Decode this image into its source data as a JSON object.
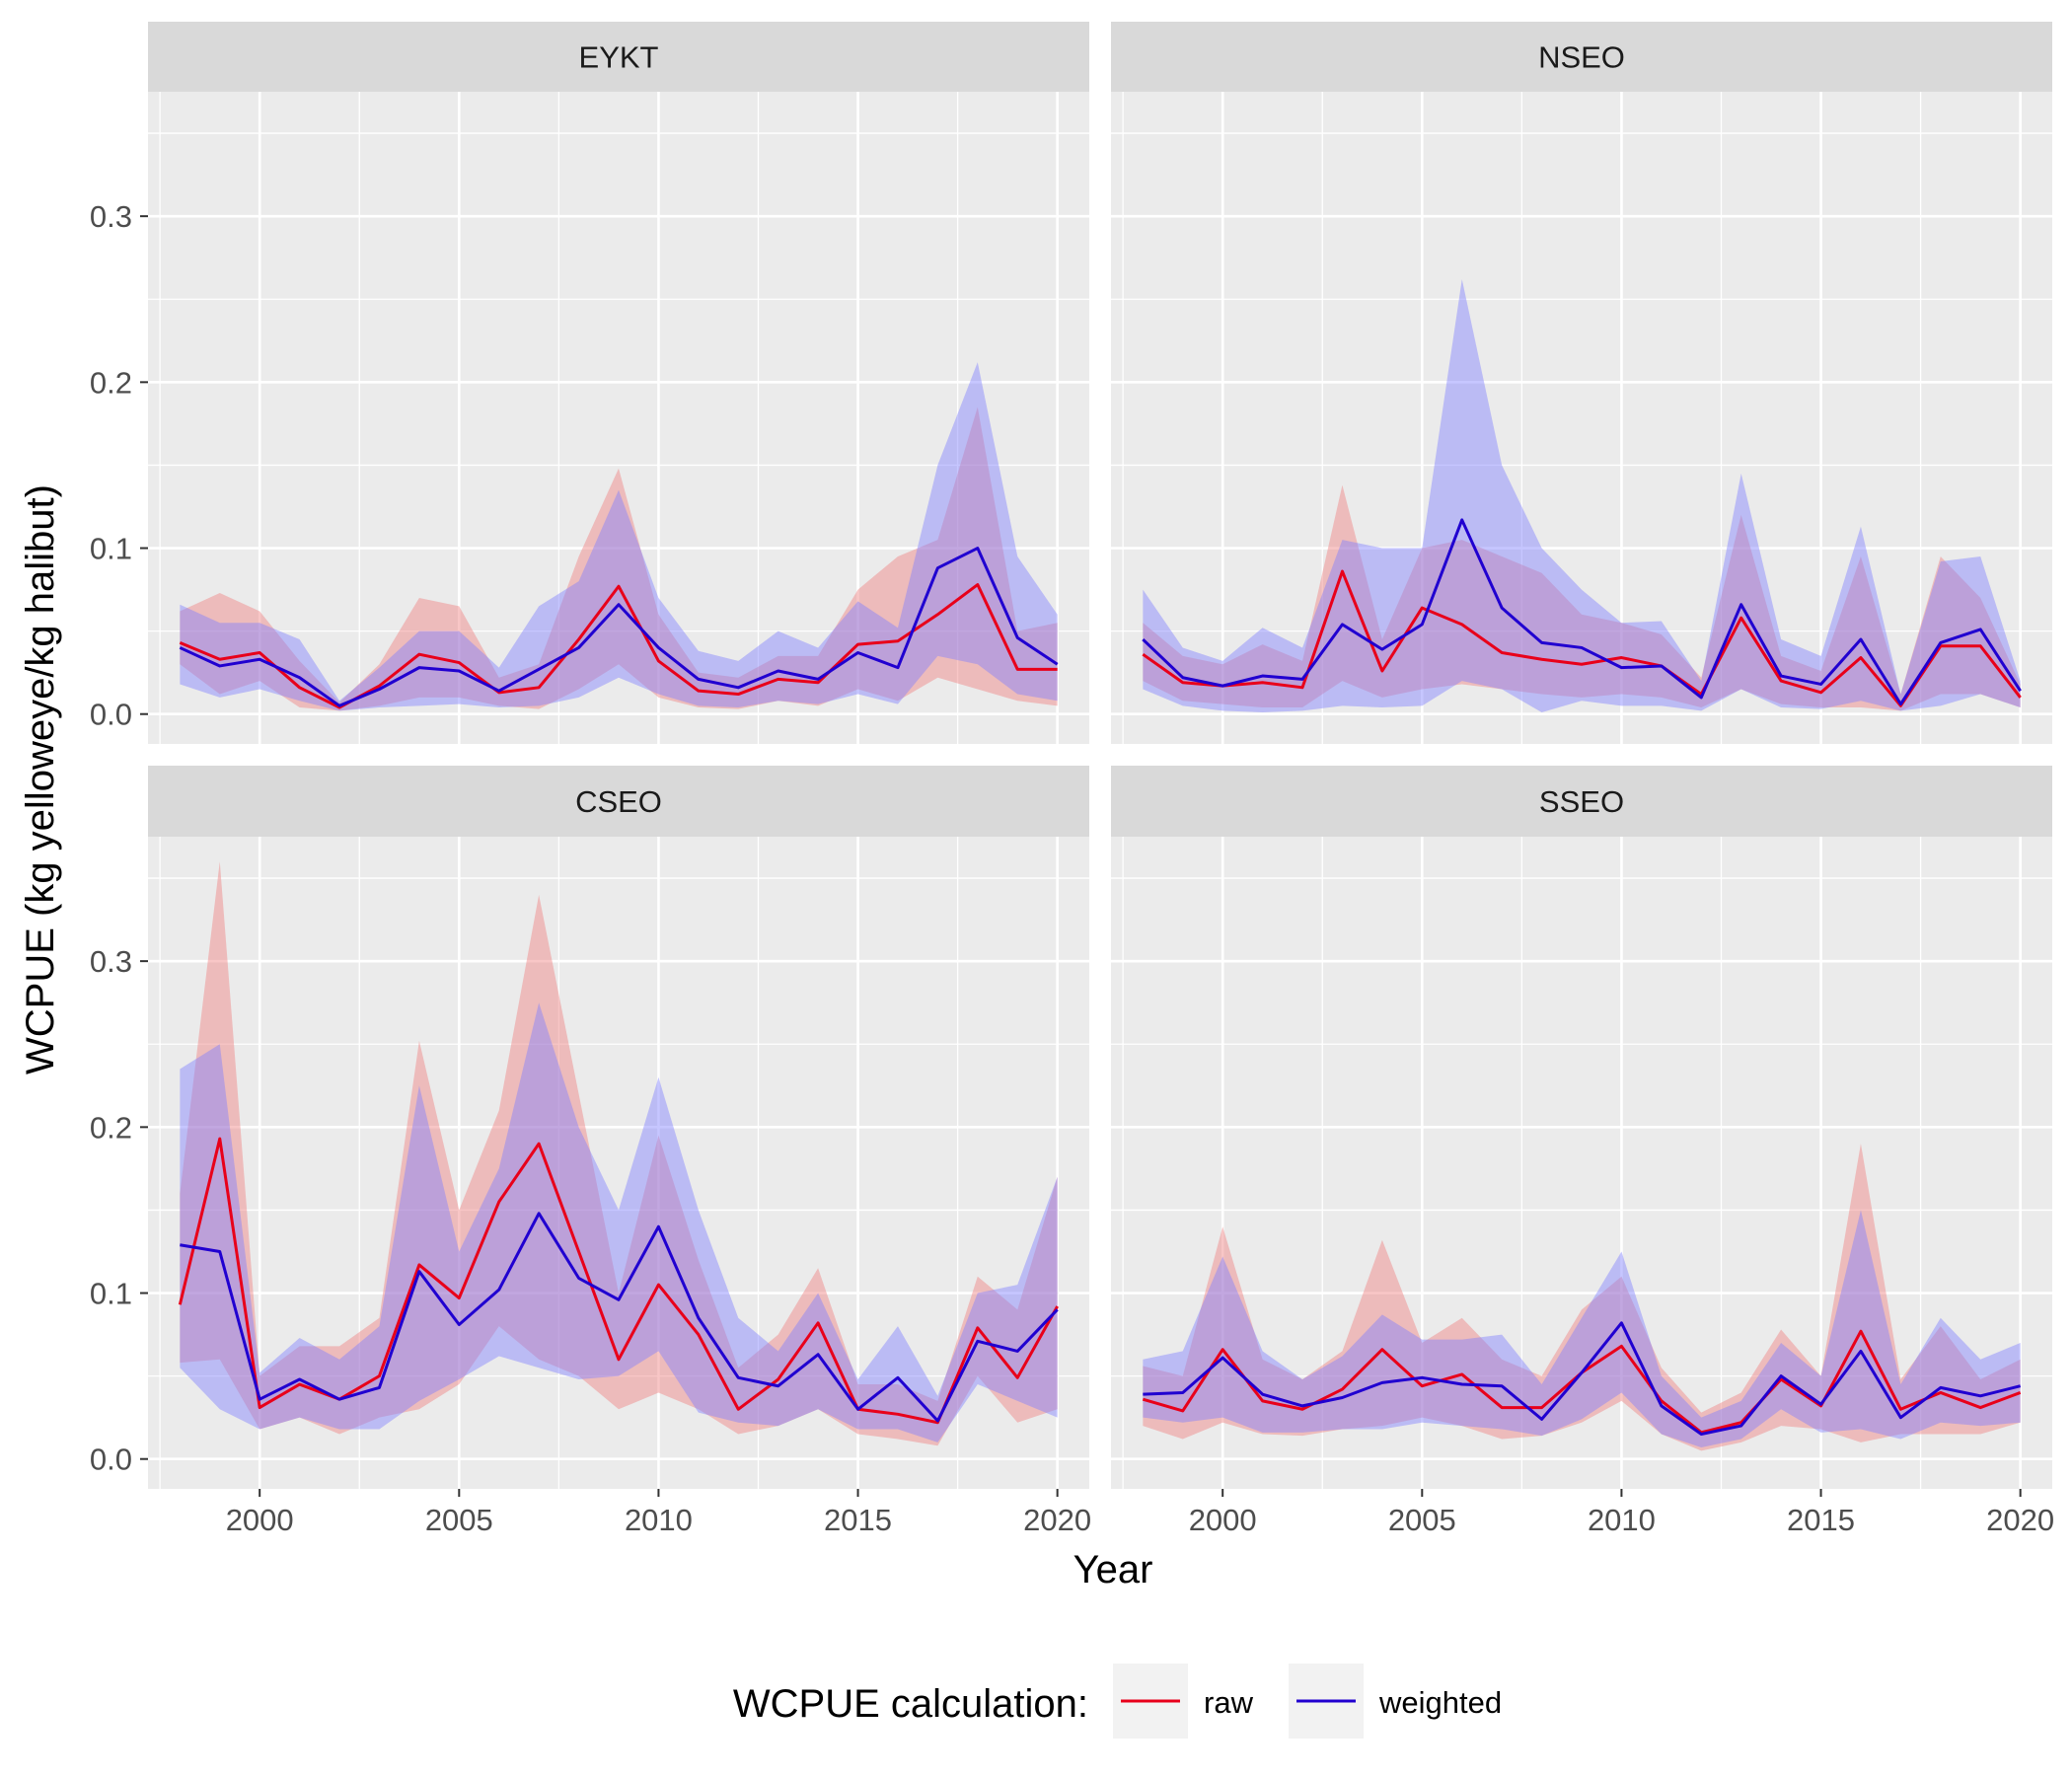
{
  "colors": {
    "raw": "#e8001a",
    "weighted": "#2000d0",
    "raw_band": "#f08080",
    "weighted_band": "#8080ff",
    "panel_bg": "#ebebeb",
    "grid": "#ffffff",
    "strip_bg": "#d9d9d9"
  },
  "chart_data": {
    "type": "line",
    "xlabel": "Year",
    "ylabel": "WCPUE (kg yelloweye/kg halibut)",
    "xlim": [
      1997.2,
      2020.8
    ],
    "ylim": [
      -0.018,
      0.375
    ],
    "xticks": [
      2000,
      2005,
      2010,
      2015,
      2020
    ],
    "xtick_labels": [
      "2000",
      "2005",
      "2010",
      "2015",
      "2020"
    ],
    "yticks": [
      0.0,
      0.1,
      0.2,
      0.3
    ],
    "ytick_labels": [
      "0.0",
      "0.1",
      "0.2",
      "0.3"
    ],
    "grid": true,
    "legend": {
      "title": "WCPUE calculation:",
      "position": "bottom",
      "entries": [
        "raw",
        "weighted"
      ]
    },
    "x": [
      1998,
      1999,
      2000,
      2001,
      2002,
      2003,
      2004,
      2005,
      2006,
      2007,
      2008,
      2009,
      2010,
      2011,
      2012,
      2013,
      2014,
      2015,
      2016,
      2017,
      2018,
      2019,
      2020
    ],
    "panels": [
      {
        "title": "EYKT",
        "series": [
          {
            "name": "raw",
            "values": [
              0.043,
              0.033,
              0.037,
              0.016,
              0.004,
              0.017,
              0.036,
              0.031,
              0.013,
              0.016,
              0.045,
              0.077,
              0.032,
              0.014,
              0.012,
              0.021,
              0.019,
              0.042,
              0.044,
              0.06,
              0.078,
              0.027,
              0.027
            ],
            "lower": [
              0.03,
              0.012,
              0.02,
              0.004,
              0.002,
              0.005,
              0.01,
              0.01,
              0.005,
              0.003,
              0.015,
              0.03,
              0.01,
              0.004,
              0.003,
              0.008,
              0.005,
              0.015,
              0.008,
              0.022,
              0.015,
              0.008,
              0.005
            ],
            "upper": [
              0.062,
              0.073,
              0.062,
              0.032,
              0.007,
              0.03,
              0.07,
              0.065,
              0.022,
              0.03,
              0.095,
              0.148,
              0.06,
              0.025,
              0.022,
              0.035,
              0.035,
              0.075,
              0.095,
              0.105,
              0.185,
              0.05,
              0.055
            ]
          },
          {
            "name": "weighted",
            "values": [
              0.04,
              0.029,
              0.033,
              0.022,
              0.005,
              0.015,
              0.028,
              0.026,
              0.014,
              0.027,
              0.04,
              0.066,
              0.04,
              0.021,
              0.016,
              0.026,
              0.021,
              0.037,
              0.028,
              0.088,
              0.1,
              0.046,
              0.03
            ],
            "lower": [
              0.018,
              0.01,
              0.015,
              0.008,
              0.002,
              0.004,
              0.005,
              0.006,
              0.004,
              0.005,
              0.01,
              0.022,
              0.012,
              0.005,
              0.004,
              0.008,
              0.006,
              0.012,
              0.006,
              0.035,
              0.03,
              0.012,
              0.008
            ],
            "upper": [
              0.066,
              0.055,
              0.055,
              0.045,
              0.008,
              0.028,
              0.05,
              0.05,
              0.028,
              0.065,
              0.08,
              0.135,
              0.07,
              0.038,
              0.032,
              0.05,
              0.04,
              0.068,
              0.052,
              0.15,
              0.212,
              0.095,
              0.06
            ]
          }
        ]
      },
      {
        "title": "NSEO",
        "series": [
          {
            "name": "raw",
            "values": [
              0.036,
              0.019,
              0.017,
              0.019,
              0.016,
              0.086,
              0.026,
              0.064,
              0.054,
              0.037,
              0.033,
              0.03,
              0.034,
              0.029,
              0.012,
              0.058,
              0.02,
              0.013,
              0.034,
              0.005,
              0.041,
              0.041,
              0.01
            ],
            "lower": [
              0.02,
              0.008,
              0.006,
              0.004,
              0.004,
              0.02,
              0.01,
              0.015,
              0.018,
              0.015,
              0.012,
              0.01,
              0.012,
              0.01,
              0.004,
              0.015,
              0.006,
              0.004,
              0.004,
              0.002,
              0.012,
              0.012,
              0.004
            ],
            "upper": [
              0.055,
              0.035,
              0.03,
              0.042,
              0.032,
              0.138,
              0.045,
              0.1,
              0.105,
              0.095,
              0.085,
              0.06,
              0.055,
              0.048,
              0.022,
              0.12,
              0.035,
              0.026,
              0.095,
              0.012,
              0.095,
              0.07,
              0.018
            ]
          },
          {
            "name": "weighted",
            "values": [
              0.045,
              0.022,
              0.017,
              0.023,
              0.021,
              0.054,
              0.039,
              0.054,
              0.117,
              0.064,
              0.043,
              0.04,
              0.028,
              0.029,
              0.01,
              0.066,
              0.023,
              0.018,
              0.045,
              0.006,
              0.043,
              0.051,
              0.014
            ],
            "lower": [
              0.015,
              0.005,
              0.002,
              0.001,
              0.002,
              0.005,
              0.004,
              0.005,
              0.02,
              0.015,
              0.001,
              0.008,
              0.005,
              0.005,
              0.002,
              0.015,
              0.004,
              0.003,
              0.008,
              0.002,
              0.005,
              0.012,
              0.004
            ],
            "upper": [
              0.075,
              0.04,
              0.032,
              0.052,
              0.04,
              0.105,
              0.1,
              0.1,
              0.262,
              0.15,
              0.1,
              0.075,
              0.055,
              0.056,
              0.02,
              0.145,
              0.045,
              0.035,
              0.113,
              0.012,
              0.092,
              0.095,
              0.02
            ]
          }
        ]
      },
      {
        "title": "CSEO",
        "series": [
          {
            "name": "raw",
            "values": [
              0.093,
              0.193,
              0.031,
              0.045,
              0.036,
              0.05,
              0.117,
              0.097,
              0.155,
              0.19,
              0.125,
              0.06,
              0.105,
              0.075,
              0.03,
              0.048,
              0.082,
              0.03,
              0.027,
              0.022,
              0.079,
              0.049,
              0.092
            ],
            "lower": [
              0.058,
              0.06,
              0.018,
              0.025,
              0.015,
              0.025,
              0.03,
              0.045,
              0.08,
              0.06,
              0.05,
              0.03,
              0.04,
              0.03,
              0.015,
              0.02,
              0.03,
              0.015,
              0.012,
              0.008,
              0.05,
              0.022,
              0.03
            ],
            "upper": [
              0.16,
              0.36,
              0.05,
              0.068,
              0.068,
              0.085,
              0.252,
              0.15,
              0.21,
              0.34,
              0.22,
              0.1,
              0.195,
              0.12,
              0.055,
              0.075,
              0.115,
              0.045,
              0.045,
              0.035,
              0.11,
              0.09,
              0.17
            ]
          },
          {
            "name": "weighted",
            "values": [
              0.129,
              0.125,
              0.036,
              0.048,
              0.036,
              0.043,
              0.113,
              0.081,
              0.102,
              0.148,
              0.109,
              0.096,
              0.14,
              0.085,
              0.049,
              0.044,
              0.063,
              0.03,
              0.049,
              0.023,
              0.071,
              0.065,
              0.09
            ],
            "lower": [
              0.055,
              0.03,
              0.018,
              0.025,
              0.018,
              0.018,
              0.035,
              0.048,
              0.062,
              0.055,
              0.048,
              0.05,
              0.065,
              0.028,
              0.022,
              0.02,
              0.03,
              0.018,
              0.018,
              0.01,
              0.045,
              0.035,
              0.025
            ],
            "upper": [
              0.235,
              0.25,
              0.052,
              0.073,
              0.06,
              0.08,
              0.225,
              0.125,
              0.175,
              0.275,
              0.2,
              0.15,
              0.23,
              0.15,
              0.085,
              0.065,
              0.1,
              0.048,
              0.08,
              0.038,
              0.1,
              0.105,
              0.17
            ]
          }
        ]
      },
      {
        "title": "SSEO",
        "series": [
          {
            "name": "raw",
            "values": [
              0.036,
              0.029,
              0.066,
              0.035,
              0.03,
              0.042,
              0.066,
              0.044,
              0.051,
              0.031,
              0.031,
              0.052,
              0.068,
              0.035,
              0.016,
              0.022,
              0.048,
              0.032,
              0.077,
              0.03,
              0.04,
              0.031,
              0.04
            ],
            "lower": [
              0.02,
              0.012,
              0.022,
              0.015,
              0.014,
              0.018,
              0.02,
              0.025,
              0.02,
              0.012,
              0.014,
              0.022,
              0.035,
              0.015,
              0.005,
              0.01,
              0.02,
              0.018,
              0.01,
              0.015,
              0.015,
              0.015,
              0.022
            ],
            "upper": [
              0.056,
              0.05,
              0.14,
              0.06,
              0.048,
              0.065,
              0.132,
              0.07,
              0.085,
              0.06,
              0.05,
              0.09,
              0.11,
              0.055,
              0.028,
              0.04,
              0.078,
              0.05,
              0.19,
              0.048,
              0.08,
              0.048,
              0.06
            ]
          },
          {
            "name": "weighted",
            "values": [
              0.039,
              0.04,
              0.061,
              0.039,
              0.032,
              0.037,
              0.046,
              0.049,
              0.045,
              0.044,
              0.024,
              0.052,
              0.082,
              0.032,
              0.015,
              0.02,
              0.05,
              0.033,
              0.065,
              0.025,
              0.043,
              0.038,
              0.044
            ],
            "lower": [
              0.025,
              0.022,
              0.025,
              0.016,
              0.016,
              0.018,
              0.018,
              0.022,
              0.02,
              0.018,
              0.014,
              0.024,
              0.04,
              0.015,
              0.007,
              0.012,
              0.03,
              0.016,
              0.018,
              0.012,
              0.022,
              0.02,
              0.022
            ],
            "upper": [
              0.06,
              0.065,
              0.122,
              0.065,
              0.048,
              0.062,
              0.087,
              0.072,
              0.072,
              0.075,
              0.045,
              0.085,
              0.125,
              0.05,
              0.025,
              0.035,
              0.07,
              0.05,
              0.15,
              0.045,
              0.085,
              0.06,
              0.07
            ]
          }
        ]
      }
    ]
  }
}
